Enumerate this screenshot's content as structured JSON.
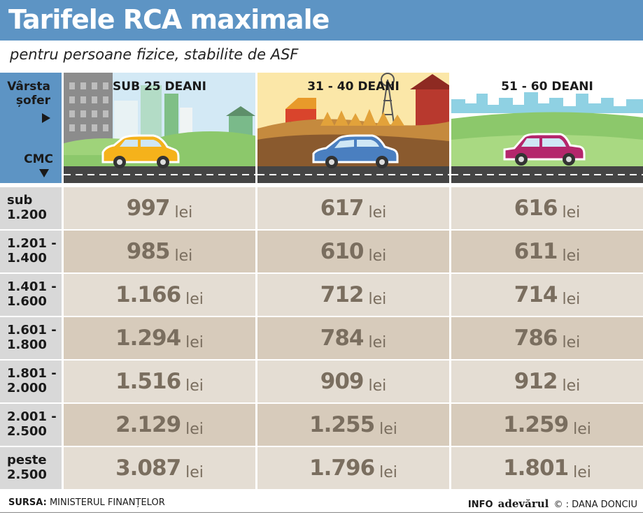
{
  "header": {
    "title": "Tarifele RCA maximale",
    "subtitle": "pentru persoane fizice, stabilite de ASF"
  },
  "corner": {
    "row_axis_label": "Vârsta șofer",
    "col_axis_label": "CMC"
  },
  "columns": [
    {
      "label": "SUB 25 DEANI",
      "car_color": "#f5b21b"
    },
    {
      "label": "31 - 40 DEANI",
      "car_color": "#4a7fc0"
    },
    {
      "label": "51 - 60 DEANI",
      "car_color": "#b4266c"
    }
  ],
  "unit": "lei",
  "rows": [
    {
      "cmc": "sub\n1.200",
      "values": [
        "997",
        "617",
        "616"
      ]
    },
    {
      "cmc": "1.201 -\n1.400",
      "values": [
        "985",
        "610",
        "611"
      ]
    },
    {
      "cmc": "1.401 -\n1.600",
      "values": [
        "1.166",
        "712",
        "714"
      ]
    },
    {
      "cmc": "1.601 -\n1.800",
      "values": [
        "1.294",
        "784",
        "786"
      ]
    },
    {
      "cmc": "1.801 -\n2.000",
      "values": [
        "1.516",
        "909",
        "912"
      ]
    },
    {
      "cmc": "2.001 -\n2.500",
      "values": [
        "2.129",
        "1.255",
        "1.259"
      ]
    },
    {
      "cmc": "peste\n2.500",
      "values": [
        "3.087",
        "1.796",
        "1.801"
      ]
    }
  ],
  "footer": {
    "source_label": "SURSA:",
    "source_value": "MINISTERUL FINANȚELOR",
    "info_label": "INFO",
    "brand": "adevărul",
    "copyright": "©",
    "credit": ": DANA DONCIU"
  },
  "colors": {
    "header_bg": "#5d94c4",
    "row_odd": "#e4ddd3",
    "row_even": "#d7cbbb",
    "value_text": "#7a6e5f",
    "cmc_bg": "#d8d8d8"
  },
  "chart_data": {
    "type": "table",
    "title": "Tarifele RCA maximale",
    "subtitle": "pentru persoane fizice, stabilite de ASF",
    "row_header": "CMC",
    "column_header": "Vârsta șofer",
    "categories": [
      "sub 1.200",
      "1.201 - 1.400",
      "1.401 - 1.600",
      "1.601 - 1.800",
      "1.801 - 2.000",
      "2.001 - 2.500",
      "peste 2.500"
    ],
    "series": [
      {
        "name": "SUB 25 DEANI",
        "values": [
          997,
          985,
          1166,
          1294,
          1516,
          2129,
          3087
        ]
      },
      {
        "name": "31 - 40 DEANI",
        "values": [
          617,
          610,
          712,
          784,
          909,
          1255,
          1796
        ]
      },
      {
        "name": "51 - 60 DEANI",
        "values": [
          616,
          611,
          714,
          786,
          912,
          1259,
          1801
        ]
      }
    ],
    "unit": "lei"
  }
}
